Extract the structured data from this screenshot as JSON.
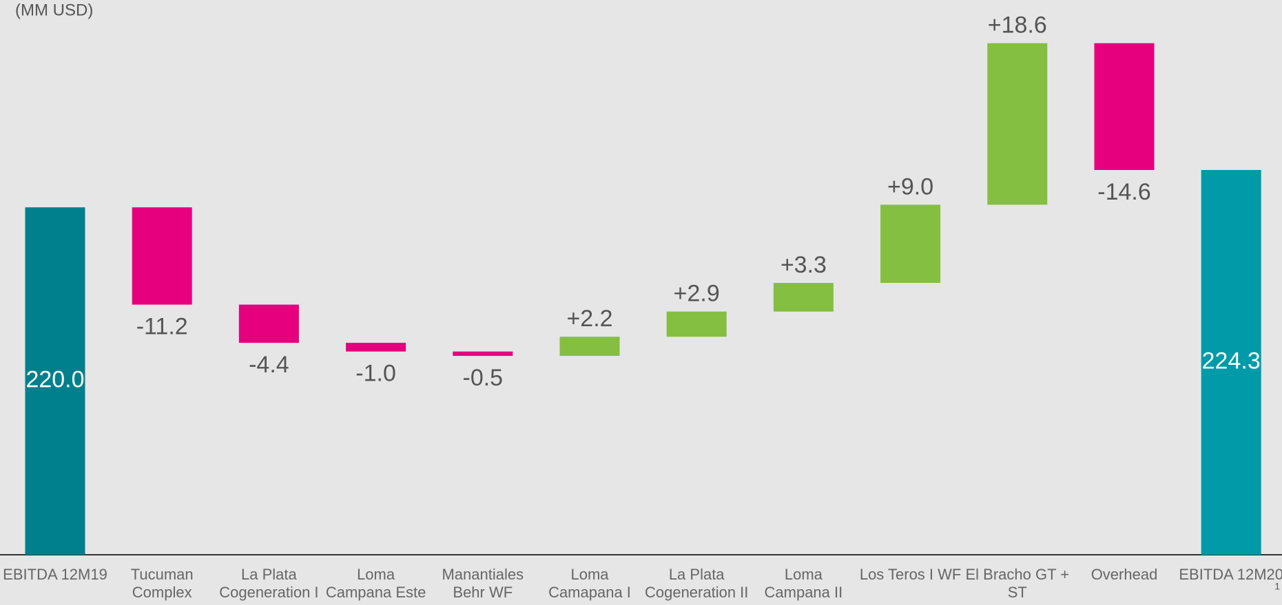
{
  "chart_data": {
    "type": "waterfall",
    "unit_label": "(MM USD)",
    "categories": [
      "EBITDA 12M19",
      "Tucuman Complex",
      "La Plata Cogeneration I",
      "Loma Campana Este",
      "Manantiales Behr WF",
      "Loma Camapana I",
      "La Plata Cogeneration II",
      "Loma Campana II",
      "Los Teros I WF",
      "El Bracho GT + ST",
      "Overhead",
      "EBITDA 12M20"
    ],
    "values": [
      220.0,
      -11.2,
      -4.4,
      -1.0,
      -0.5,
      2.2,
      2.9,
      3.3,
      9.0,
      18.6,
      -14.6,
      224.3
    ],
    "value_labels": [
      "220.0",
      "-11.2",
      "-4.4",
      "-1.0",
      "-0.5",
      "+2.2",
      "+2.9",
      "+3.3",
      "+9.0",
      "+18.6",
      "-14.6",
      "224.3"
    ],
    "ylim": [
      180,
      243
    ],
    "colors": {
      "increase": "#84bf41",
      "decrease": "#e6007e",
      "totals": [
        "#00808c",
        "#009aa8"
      ]
    },
    "page_number": "1"
  }
}
